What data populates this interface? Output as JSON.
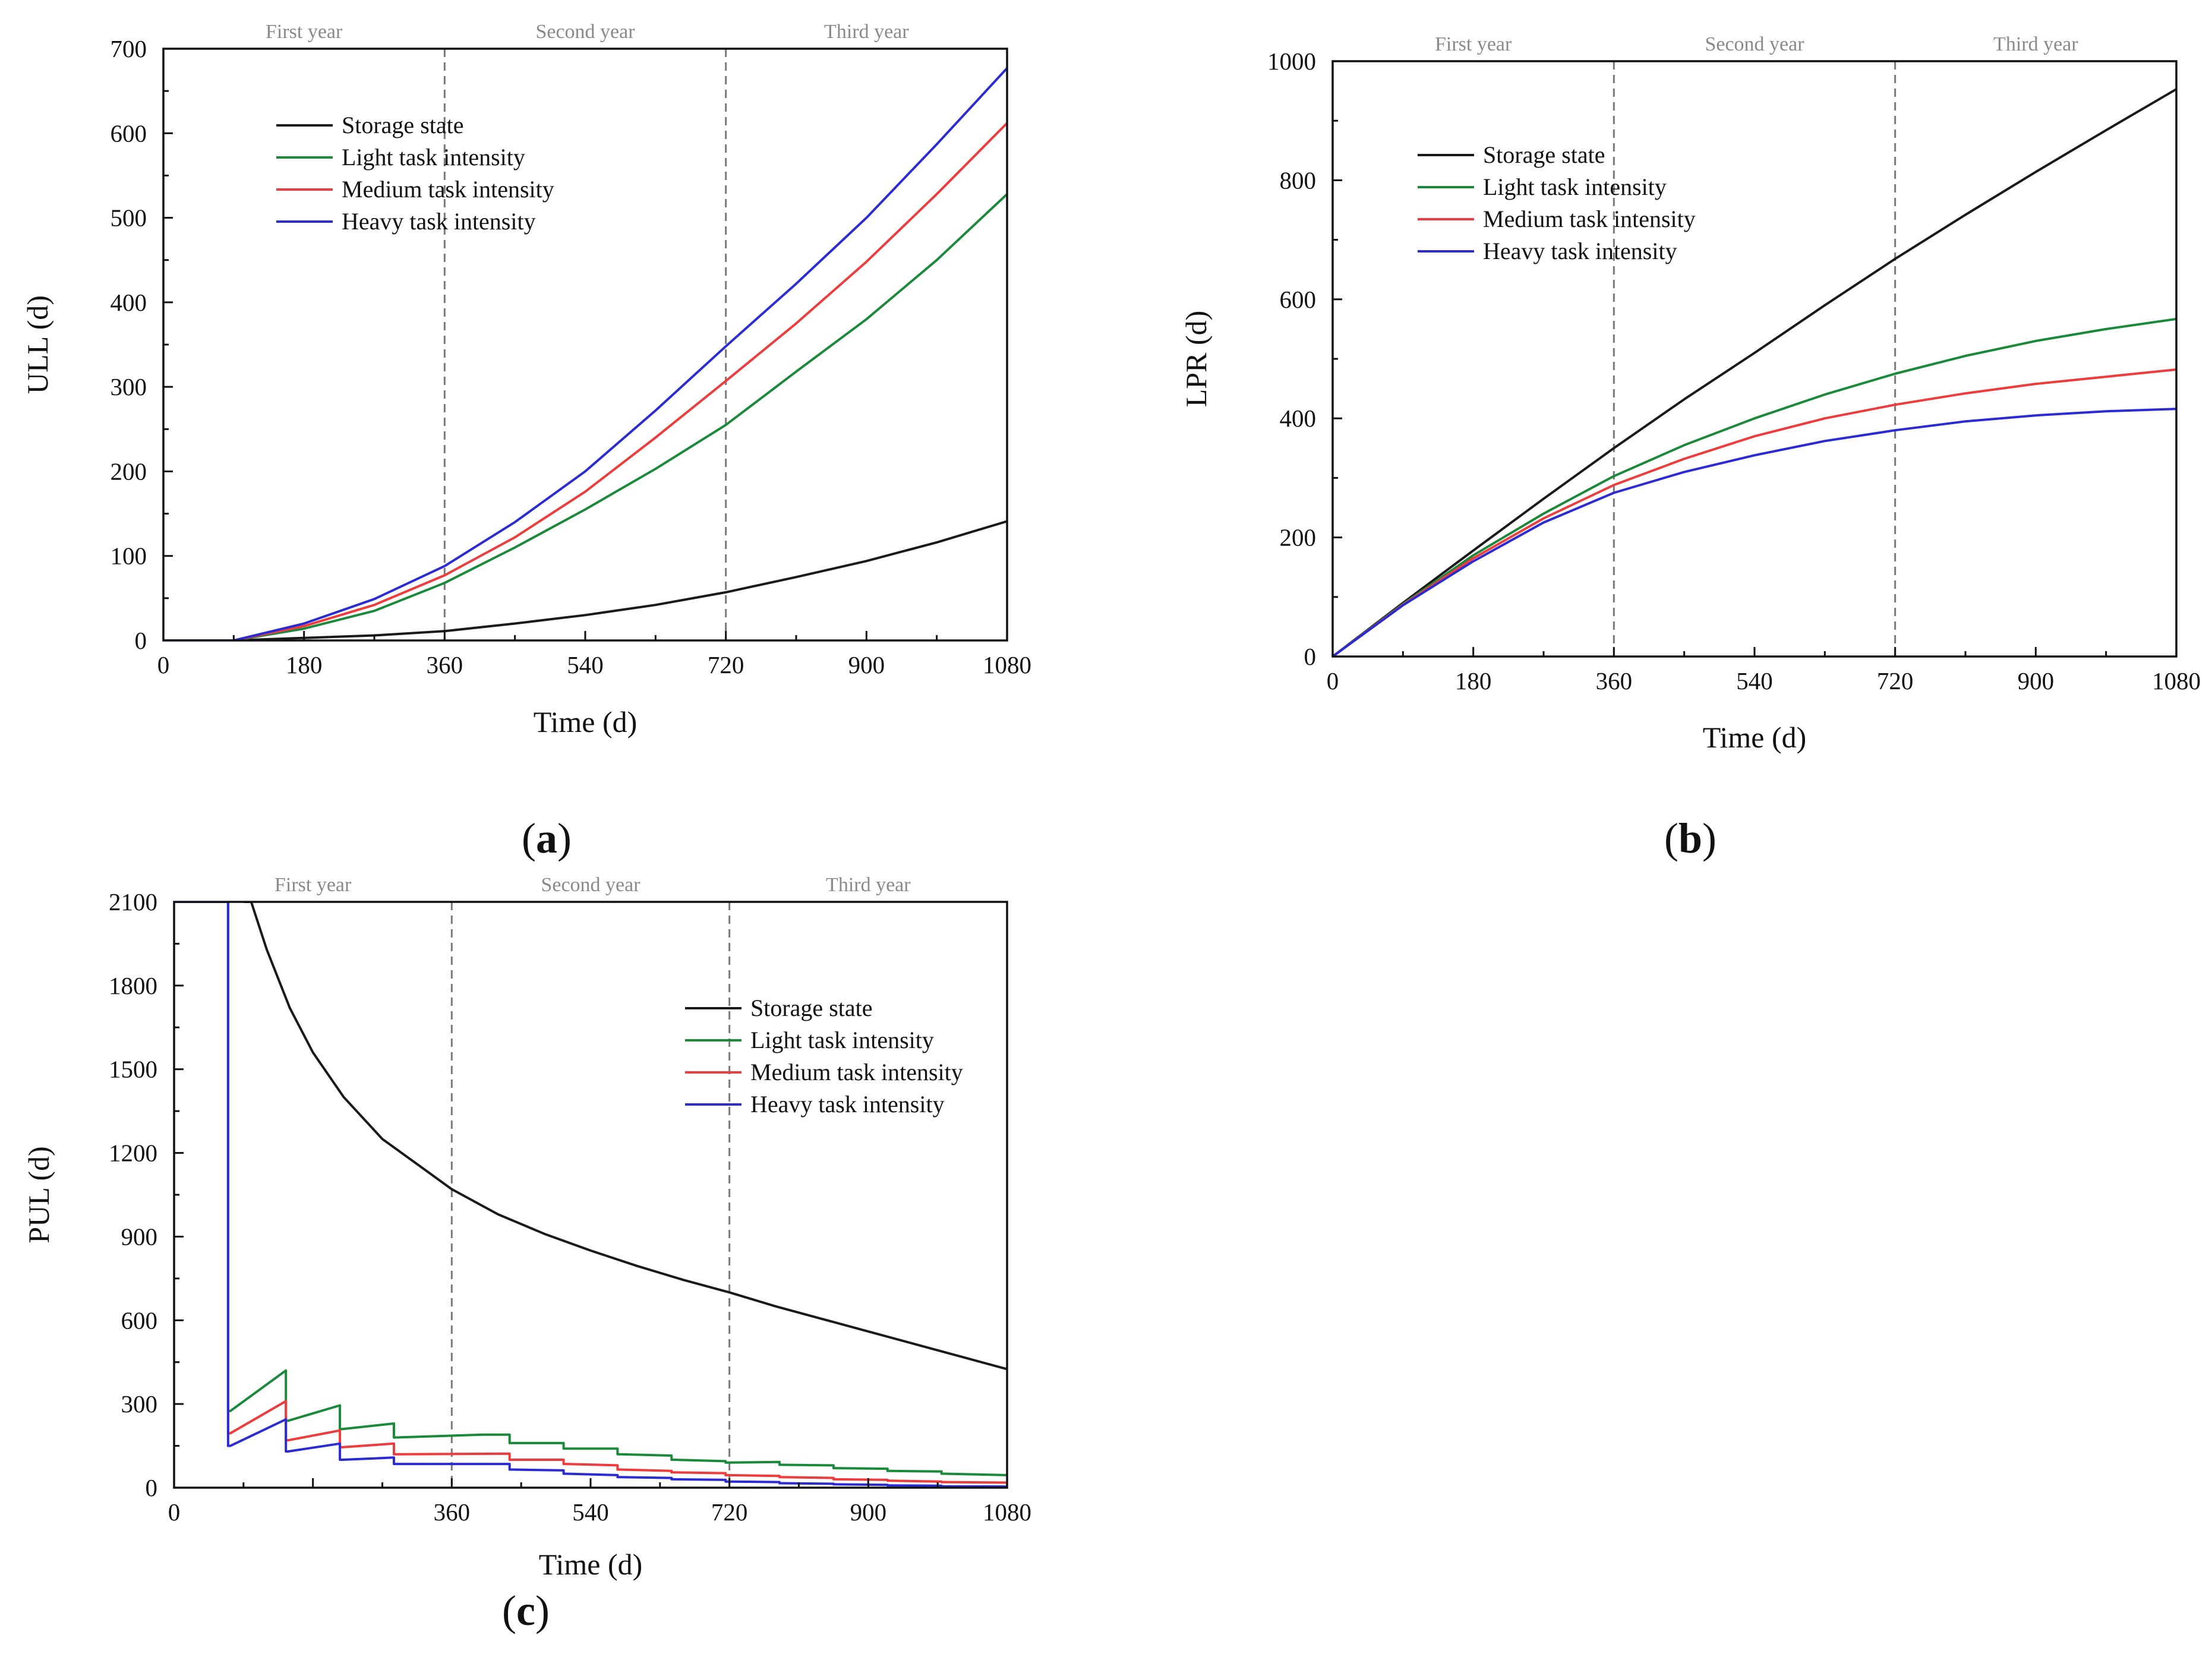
{
  "colors": {
    "storage": "#1a1a1a",
    "light": "#1a8a3a",
    "medium": "#ee3b3b",
    "heavy": "#2b2bd6",
    "year_divider": "#7a7a7a",
    "year_label": "#8a8a8a"
  },
  "chart_data": [
    {
      "id": "a",
      "type": "line",
      "panel_label": "a",
      "xlabel": "Time (d)",
      "ylabel": "ULL (d)",
      "xlim": [
        0,
        1080
      ],
      "ylim": [
        0,
        700
      ],
      "xticks": [
        0,
        180,
        360,
        540,
        720,
        900,
        1080
      ],
      "yticks": [
        0,
        100,
        200,
        300,
        400,
        500,
        600,
        700
      ],
      "year_labels": [
        "First year",
        "Second year",
        "Third year"
      ],
      "year_dividers": [
        360,
        720
      ],
      "legend_position": "upper-left",
      "x": [
        0,
        90,
        180,
        270,
        360,
        450,
        540,
        630,
        720,
        810,
        900,
        990,
        1080
      ],
      "series": [
        {
          "name": "Storage state",
          "color_key": "storage",
          "values": [
            0,
            0,
            3,
            6,
            11,
            20,
            30,
            42,
            57,
            75,
            94,
            116,
            141
          ]
        },
        {
          "name": "Light task intensity",
          "color_key": "light",
          "values": [
            0,
            0,
            14,
            35,
            68,
            110,
            155,
            203,
            255,
            318,
            380,
            450,
            528
          ]
        },
        {
          "name": "Medium task intensity",
          "color_key": "medium",
          "values": [
            0,
            0,
            17,
            42,
            77,
            122,
            176,
            240,
            307,
            375,
            448,
            528,
            612
          ]
        },
        {
          "name": "Heavy task intensity",
          "color_key": "heavy",
          "values": [
            0,
            0,
            20,
            49,
            88,
            140,
            200,
            272,
            348,
            422,
            500,
            587,
            677
          ]
        }
      ]
    },
    {
      "id": "b",
      "type": "line",
      "panel_label": "b",
      "xlabel": "Time (d)",
      "ylabel": "LPR (d)",
      "xlim": [
        0,
        1080
      ],
      "ylim": [
        0,
        1000
      ],
      "xticks": [
        0,
        180,
        360,
        540,
        720,
        900,
        1080
      ],
      "yticks": [
        0,
        200,
        400,
        600,
        800,
        1000
      ],
      "year_labels": [
        "First year",
        "Second year",
        "Third year"
      ],
      "year_dividers": [
        360,
        720
      ],
      "legend_position": "upper-left",
      "x": [
        0,
        90,
        180,
        270,
        360,
        450,
        540,
        630,
        720,
        810,
        900,
        990,
        1080
      ],
      "series": [
        {
          "name": "Storage state",
          "color_key": "storage",
          "values": [
            0,
            90,
            178,
            265,
            350,
            432,
            510,
            590,
            668,
            742,
            814,
            884,
            953
          ]
        },
        {
          "name": "Light task intensity",
          "color_key": "light",
          "values": [
            0,
            88,
            170,
            240,
            303,
            355,
            400,
            440,
            475,
            505,
            530,
            550,
            567
          ]
        },
        {
          "name": "Medium task intensity",
          "color_key": "medium",
          "values": [
            0,
            87,
            165,
            232,
            288,
            332,
            370,
            400,
            423,
            442,
            458,
            470,
            482
          ]
        },
        {
          "name": "Heavy task intensity",
          "color_key": "heavy",
          "values": [
            0,
            86,
            160,
            225,
            275,
            310,
            338,
            362,
            380,
            395,
            405,
            412,
            416
          ]
        }
      ]
    },
    {
      "id": "c",
      "type": "line",
      "panel_label": "c",
      "xlabel": "Time (d)",
      "ylabel": "PUL (d)",
      "xlim": [
        0,
        1080
      ],
      "ylim": [
        0,
        2100
      ],
      "xticks": [
        0,
        360,
        540,
        720,
        900,
        1080
      ],
      "yticks": [
        0,
        300,
        600,
        900,
        1200,
        1500,
        1800,
        2100
      ],
      "year_labels": [
        "First year",
        "Second year",
        "Third year"
      ],
      "year_dividers": [
        360,
        720
      ],
      "legend_position": "center-right",
      "series": [
        {
          "name": "Storage state",
          "color_key": "storage",
          "x": [
            90,
            100,
            120,
            150,
            180,
            220,
            270,
            320,
            360,
            420,
            480,
            540,
            600,
            660,
            720,
            780,
            840,
            900,
            960,
            1020,
            1080
          ],
          "values": [
            2100,
            2100,
            1930,
            1720,
            1560,
            1400,
            1250,
            1150,
            1070,
            980,
            910,
            850,
            795,
            745,
            700,
            650,
            605,
            560,
            515,
            470,
            425
          ]
        },
        {
          "name": "Light task intensity",
          "color_key": "light",
          "x": [
            0,
            0,
            70,
            70,
            73,
            145,
            145,
            148,
            215,
            215,
            218,
            285,
            285,
            288,
            400,
            402,
            435,
            435,
            438,
            505,
            505,
            508,
            575,
            575,
            578,
            645,
            645,
            648,
            715,
            715,
            718,
            785,
            785,
            788,
            855,
            855,
            858,
            925,
            925,
            928,
            995,
            995,
            998,
            1080
          ],
          "values": [
            2100,
            2100,
            2100,
            275,
            275,
            420,
            240,
            240,
            295,
            210,
            210,
            230,
            180,
            180,
            190,
            190,
            190,
            160,
            160,
            160,
            140,
            140,
            140,
            120,
            120,
            115,
            100,
            100,
            95,
            90,
            90,
            92,
            82,
            82,
            80,
            70,
            70,
            68,
            60,
            60,
            58,
            50,
            50,
            45
          ]
        },
        {
          "name": "Medium task intensity",
          "color_key": "medium",
          "x": [
            0,
            0,
            70,
            70,
            73,
            145,
            145,
            148,
            215,
            215,
            218,
            285,
            285,
            288,
            435,
            435,
            438,
            505,
            505,
            508,
            575,
            575,
            578,
            645,
            645,
            648,
            715,
            715,
            718,
            785,
            785,
            788,
            855,
            855,
            858,
            925,
            925,
            928,
            995,
            995,
            998,
            1080
          ],
          "values": [
            2100,
            2100,
            2100,
            195,
            195,
            310,
            170,
            170,
            205,
            145,
            145,
            158,
            120,
            120,
            122,
            100,
            100,
            100,
            85,
            85,
            80,
            65,
            65,
            60,
            55,
            55,
            52,
            45,
            45,
            42,
            38,
            38,
            35,
            30,
            30,
            28,
            25,
            25,
            22,
            20,
            20,
            18
          ]
        },
        {
          "name": "Heavy task intensity",
          "color_key": "heavy",
          "x": [
            0,
            0,
            70,
            70,
            73,
            145,
            145,
            148,
            215,
            215,
            218,
            285,
            285,
            288,
            435,
            435,
            438,
            505,
            505,
            508,
            575,
            575,
            578,
            645,
            645,
            648,
            715,
            715,
            718,
            785,
            785,
            788,
            855,
            855,
            858,
            925,
            925,
            928,
            995,
            995,
            998,
            1080
          ],
          "values": [
            2100,
            2100,
            2100,
            150,
            150,
            245,
            130,
            130,
            158,
            100,
            100,
            108,
            85,
            85,
            85,
            65,
            65,
            62,
            50,
            50,
            45,
            38,
            38,
            35,
            30,
            30,
            28,
            22,
            22,
            20,
            16,
            16,
            14,
            12,
            12,
            10,
            8,
            8,
            7,
            5,
            5,
            4
          ]
        }
      ]
    }
  ]
}
